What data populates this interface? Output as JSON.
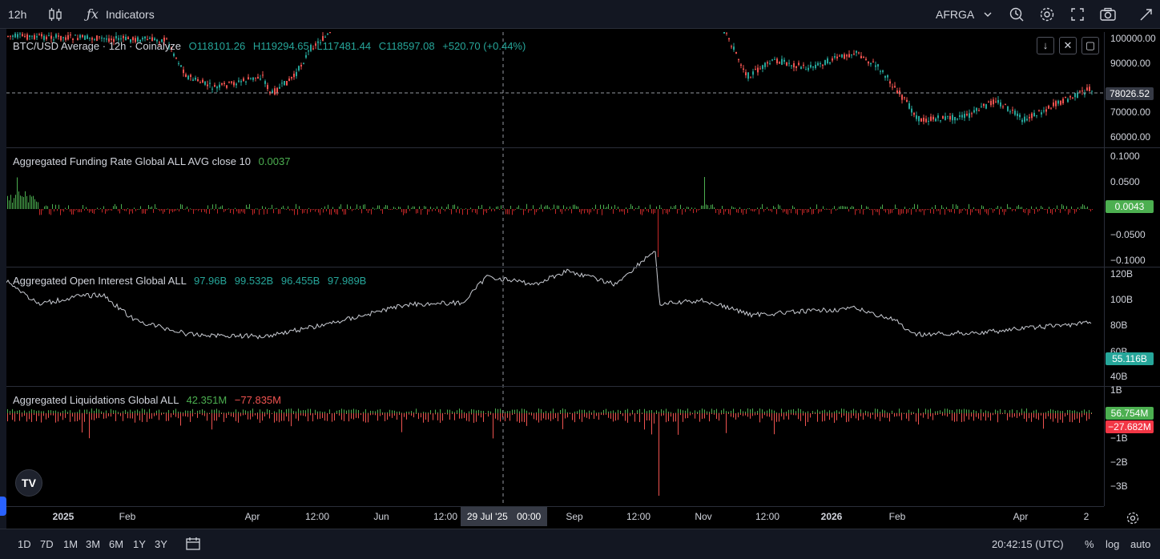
{
  "toolbar": {
    "interval": "12h",
    "indicators_label": "Indicators",
    "layout_name": "AFRGA",
    "icons": [
      "candles-icon",
      "fx-icon",
      "alert-icon",
      "settings-icon",
      "fullscreen-icon",
      "camera-icon",
      "publish-icon"
    ]
  },
  "main_pane": {
    "symbol": "BTC/USD Average · 12h · Coinalyze",
    "open": "O118101.26",
    "high": "H119294.65",
    "low": "L117481.44",
    "close": "C118597.08",
    "change": "+520.70 (+0.44%)",
    "axis": [
      "100000.00",
      "90000.00",
      "70000.00",
      "60000.00"
    ],
    "last_price": "78026.52"
  },
  "funding_pane": {
    "name": "Aggregated Funding Rate Global ALL AVG close 10",
    "value": "0.0037",
    "axis": [
      "0.1000",
      "0.0500",
      "−0.0500",
      "−0.1000"
    ],
    "last_value": "0.0043"
  },
  "oi_pane": {
    "name": "Aggregated Open Interest Global ALL",
    "v1": "97.96B",
    "v2": "99.532B",
    "v3": "96.455B",
    "v4": "97.989B",
    "axis": [
      "120B",
      "100B",
      "80B",
      "60B",
      "40B"
    ],
    "last_value": "55.116B"
  },
  "liq_pane": {
    "name": "Aggregated Liquidations Global ALL",
    "long_value": "42.351M",
    "short_value": "−77.835M",
    "axis": [
      "1B",
      "−1B",
      "−2B",
      "−3B"
    ],
    "last_long": "56.754M",
    "last_short": "−27.682M"
  },
  "time_axis": {
    "ticks": [
      {
        "label": "2025",
        "bold": true
      },
      {
        "label": "Feb",
        "bold": false
      },
      {
        "label": "Apr",
        "bold": false
      },
      {
        "label": "12:00",
        "bold": false
      },
      {
        "label": "Jun",
        "bold": false
      },
      {
        "label": "12:00",
        "bold": false
      },
      {
        "label": "Sep",
        "bold": false
      },
      {
        "label": "12:00",
        "bold": false
      },
      {
        "label": "Nov",
        "bold": false
      },
      {
        "label": "12:00",
        "bold": false
      },
      {
        "label": "2026",
        "bold": true
      },
      {
        "label": "Feb",
        "bold": false
      },
      {
        "label": "Apr",
        "bold": false
      },
      {
        "label": "2",
        "bold": false
      }
    ],
    "crosshair_date": "29 Jul '25",
    "crosshair_time": "00:00"
  },
  "bottombar": {
    "ranges": [
      "1D",
      "7D",
      "1M",
      "3M",
      "6M",
      "1Y",
      "3Y"
    ],
    "clock": "20:42:15 (UTC)",
    "percent_label": "%",
    "log_label": "log",
    "auto_label": "auto"
  },
  "colors": {
    "up": "#26a69a",
    "down": "#ef5350",
    "funding_pos": "#4caf50",
    "funding_neg": "#c62828",
    "badge_price": "#363a45",
    "badge_funding": "#4caf50",
    "badge_oi": "#26a69a",
    "badge_liq_long": "#4caf50",
    "badge_liq_short": "#f23645"
  }
}
